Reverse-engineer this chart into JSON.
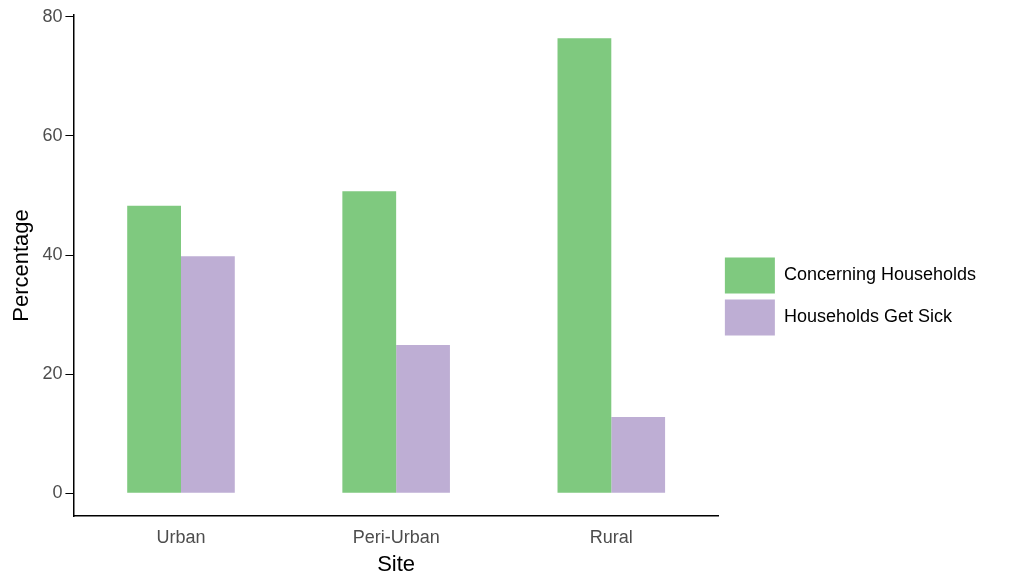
{
  "chart_data": {
    "type": "bar",
    "xlabel": "Site",
    "ylabel": "Percentage",
    "categories": [
      "Urban",
      "Peri-Urban",
      "Rural"
    ],
    "series": [
      {
        "name": "Concerning Households",
        "color": "#7fc97f",
        "values": [
          48.3,
          50.7,
          76.4
        ]
      },
      {
        "name": "Households Get Sick",
        "color": "#beaed4",
        "values": [
          39.8,
          24.9,
          12.8
        ]
      }
    ],
    "ylim": [
      -3.8,
      80.3
    ],
    "yticks": [
      0,
      20,
      40,
      60,
      80
    ],
    "grid": false,
    "legend": "right"
  }
}
